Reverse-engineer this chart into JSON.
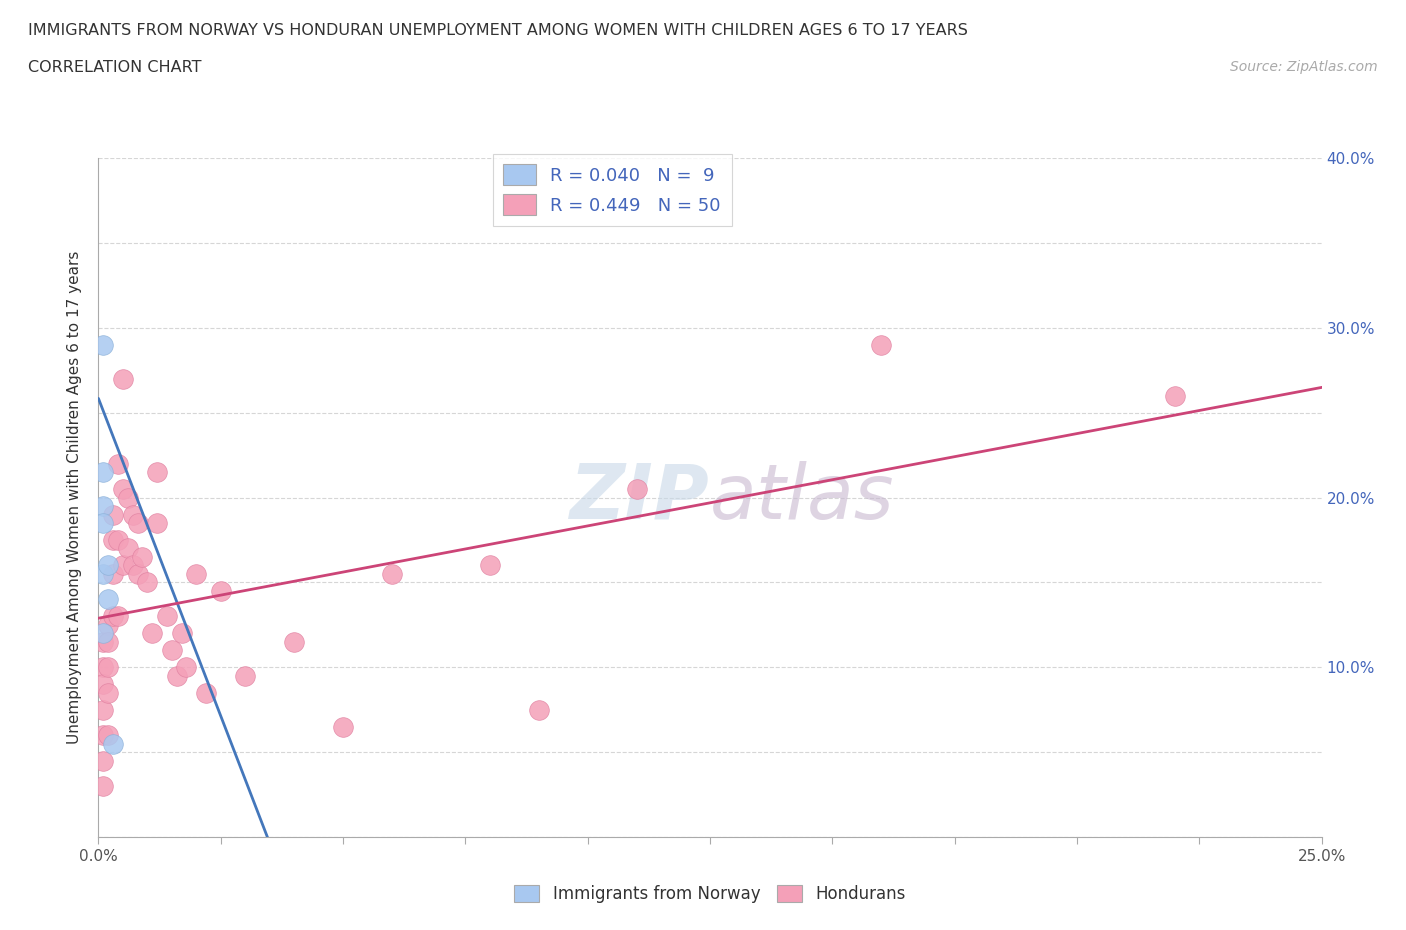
{
  "title_line1": "IMMIGRANTS FROM NORWAY VS HONDURAN UNEMPLOYMENT AMONG WOMEN WITH CHILDREN AGES 6 TO 17 YEARS",
  "title_line2": "CORRELATION CHART",
  "source_text": "Source: ZipAtlas.com",
  "ylabel": "Unemployment Among Women with Children Ages 6 to 17 years",
  "xlim": [
    0.0,
    0.25
  ],
  "ylim": [
    0.0,
    0.4
  ],
  "norway_R": 0.04,
  "norway_N": 9,
  "honduran_R": 0.449,
  "honduran_N": 50,
  "norway_color": "#a8c8f0",
  "honduran_color": "#f4a0b8",
  "norway_edge_color": "#8ab0d8",
  "honduran_edge_color": "#e080a0",
  "norway_line_color": "#4477bb",
  "honduran_line_color": "#cc4477",
  "right_tick_color": "#4466bb",
  "background_color": "#ffffff",
  "norway_x": [
    0.001,
    0.001,
    0.001,
    0.001,
    0.001,
    0.002,
    0.002,
    0.001,
    0.003
  ],
  "norway_y": [
    0.29,
    0.215,
    0.195,
    0.185,
    0.155,
    0.16,
    0.14,
    0.12,
    0.055
  ],
  "honduran_x": [
    0.001,
    0.001,
    0.001,
    0.001,
    0.001,
    0.001,
    0.001,
    0.002,
    0.002,
    0.002,
    0.002,
    0.002,
    0.003,
    0.003,
    0.003,
    0.003,
    0.004,
    0.004,
    0.004,
    0.005,
    0.005,
    0.005,
    0.006,
    0.006,
    0.007,
    0.007,
    0.008,
    0.008,
    0.009,
    0.01,
    0.011,
    0.012,
    0.012,
    0.014,
    0.015,
    0.016,
    0.017,
    0.018,
    0.02,
    0.022,
    0.025,
    0.03,
    0.04,
    0.05,
    0.06,
    0.08,
    0.09,
    0.11,
    0.16,
    0.22
  ],
  "honduran_y": [
    0.115,
    0.1,
    0.09,
    0.075,
    0.06,
    0.045,
    0.03,
    0.125,
    0.115,
    0.1,
    0.085,
    0.06,
    0.19,
    0.175,
    0.155,
    0.13,
    0.22,
    0.175,
    0.13,
    0.27,
    0.205,
    0.16,
    0.2,
    0.17,
    0.19,
    0.16,
    0.185,
    0.155,
    0.165,
    0.15,
    0.12,
    0.215,
    0.185,
    0.13,
    0.11,
    0.095,
    0.12,
    0.1,
    0.155,
    0.085,
    0.145,
    0.095,
    0.115,
    0.065,
    0.155,
    0.16,
    0.075,
    0.205,
    0.29,
    0.26
  ]
}
